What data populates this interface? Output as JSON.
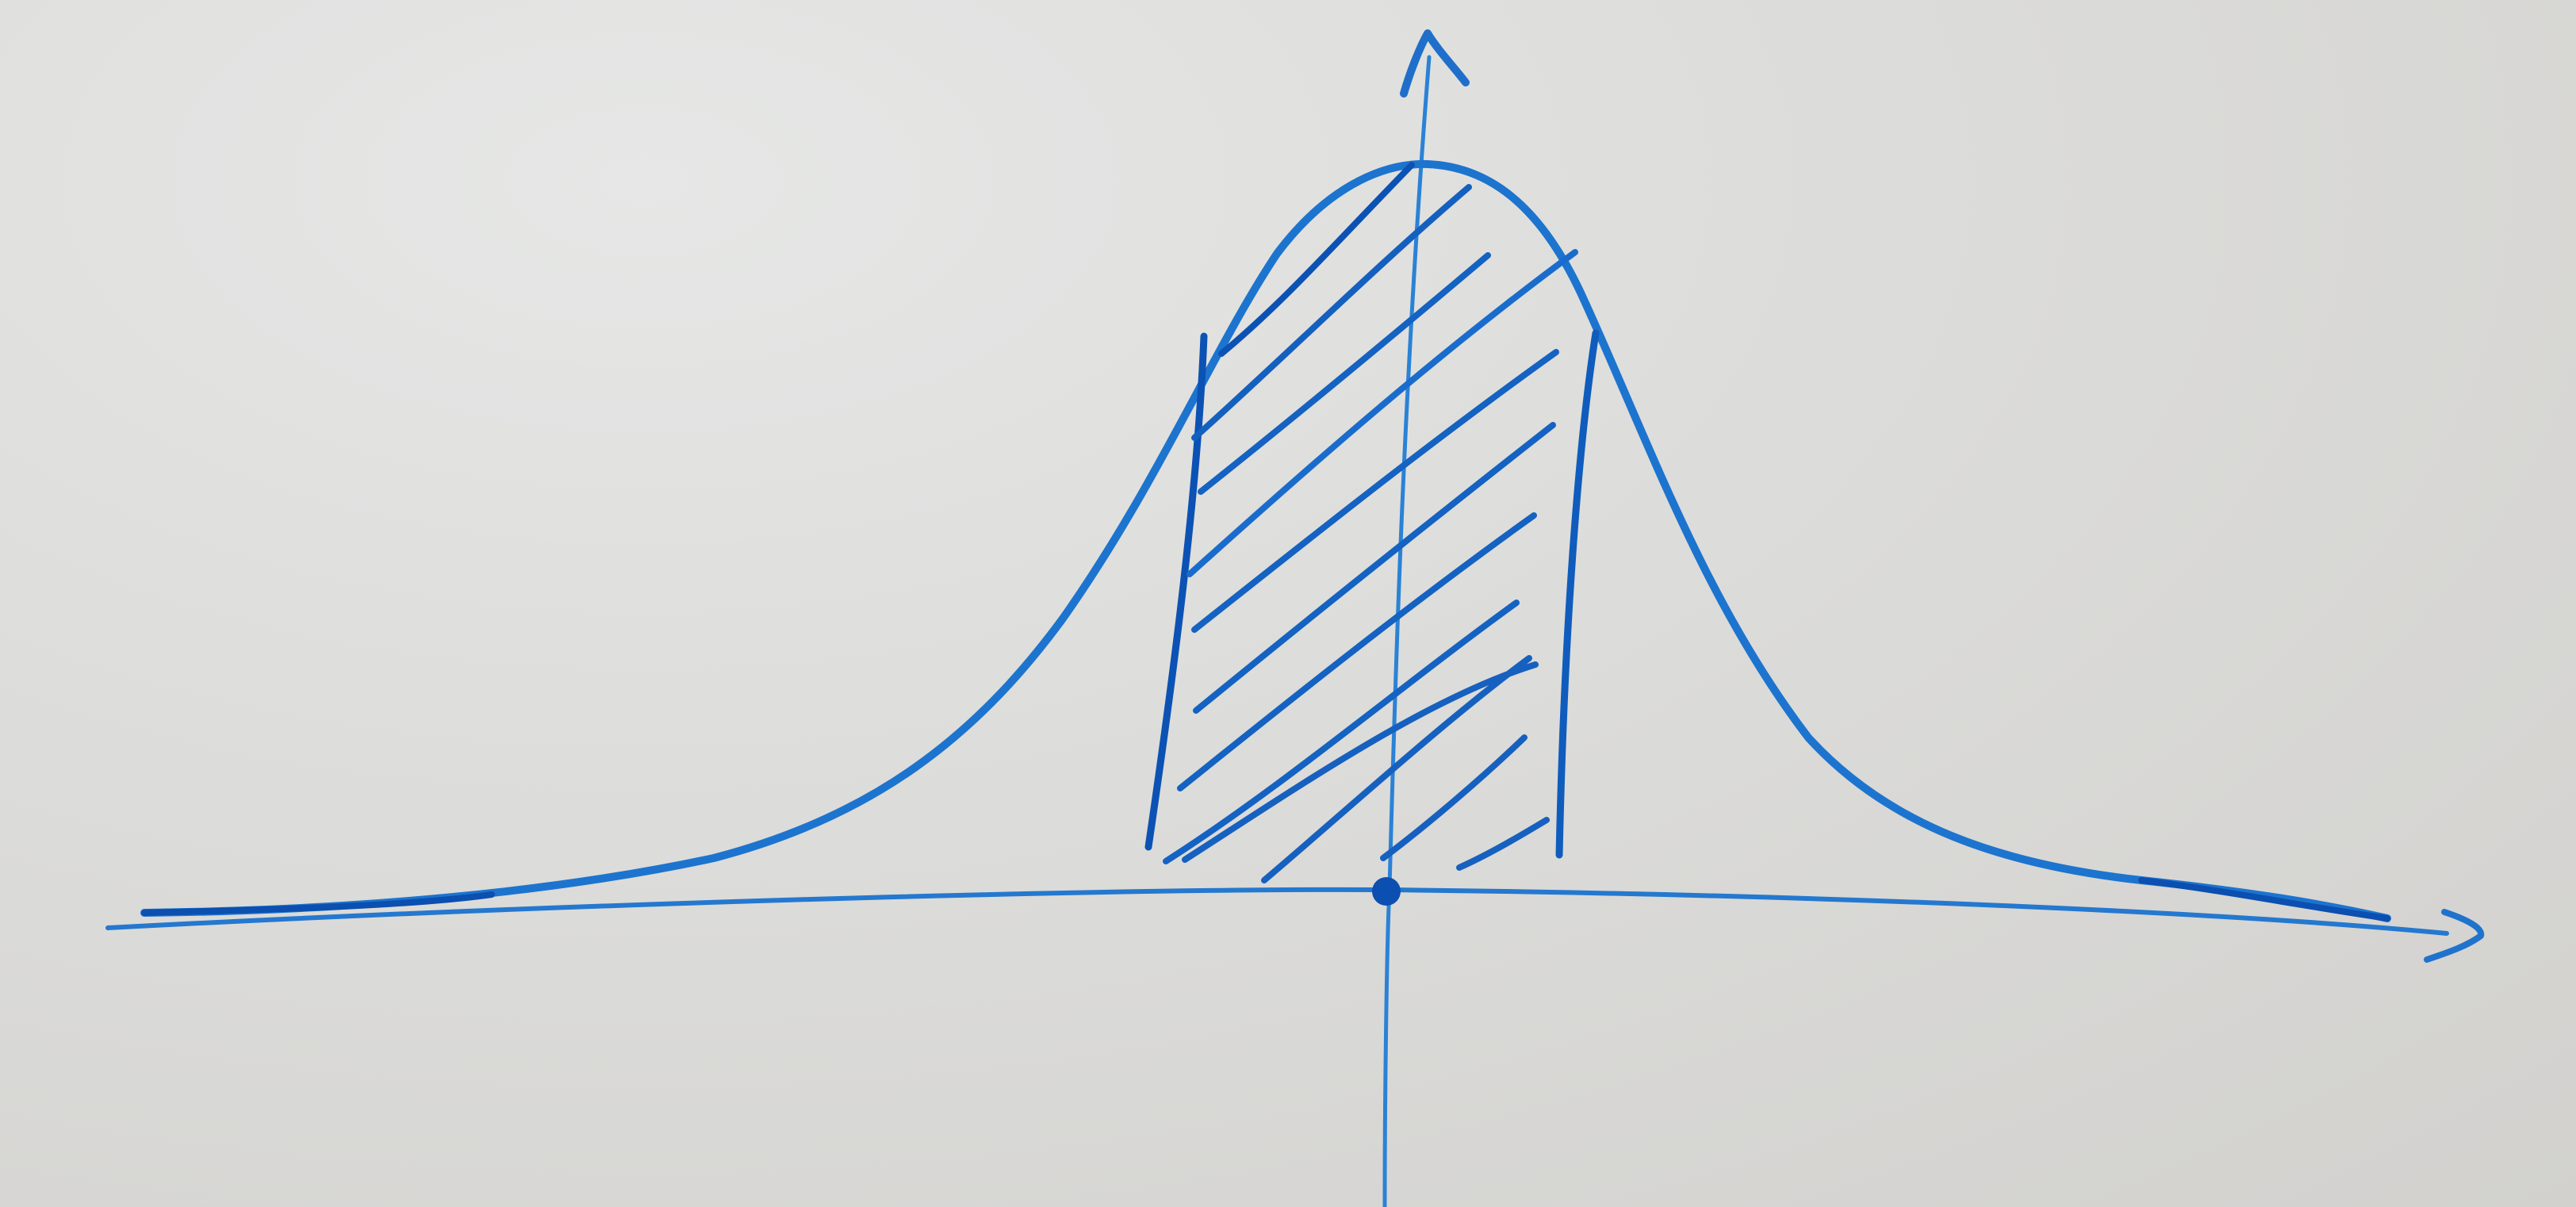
{
  "diagram": {
    "title": "",
    "description_type": "bell-curve",
    "curve": "normal-distribution",
    "shaded_region": "central-interval",
    "marked_origin": true
  },
  "colors": {
    "background": "#dcdcda",
    "ink_light": "#1f78d1",
    "ink_dark": "#0b4fb0"
  }
}
